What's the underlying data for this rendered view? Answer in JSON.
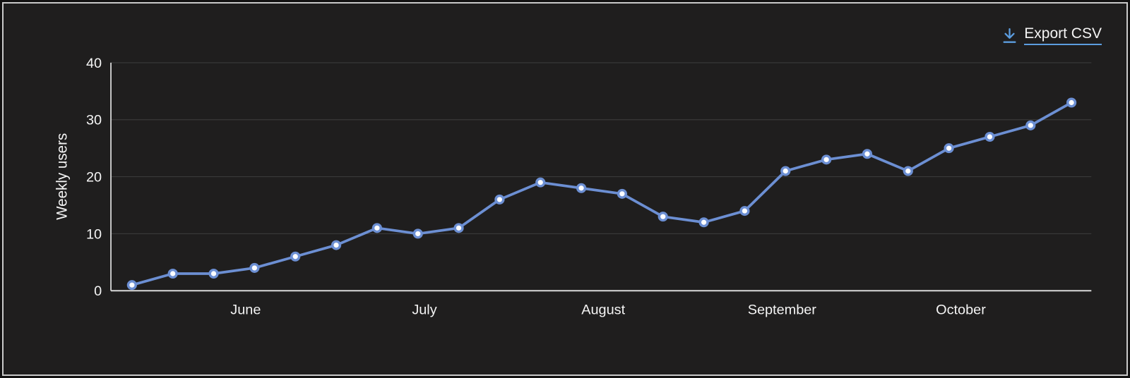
{
  "header": {
    "export_label": "Export CSV"
  },
  "chart_data": {
    "type": "line",
    "title": "",
    "xlabel": "",
    "ylabel": "Weekly users",
    "x_tick_labels": [
      "June",
      "July",
      "August",
      "September",
      "October"
    ],
    "y_ticks": [
      0,
      10,
      20,
      30,
      40
    ],
    "ylim": [
      0,
      40
    ],
    "grid": "horizontal",
    "legend": "none",
    "series": [
      {
        "name": "Weekly users",
        "values": [
          1,
          3,
          3,
          4,
          6,
          8,
          11,
          10,
          11,
          16,
          19,
          18,
          17,
          13,
          12,
          14,
          21,
          23,
          24,
          21,
          25,
          27,
          29,
          33
        ]
      }
    ],
    "colors": {
      "line": "#6C8FD3",
      "point_fill": "#FFFFFF",
      "accent_link": "#5C9DDF",
      "axis": "#D9D9D9",
      "gridline": "#3A3A3A",
      "text": "#F4F4F4",
      "background": "#1F1E1E"
    }
  }
}
